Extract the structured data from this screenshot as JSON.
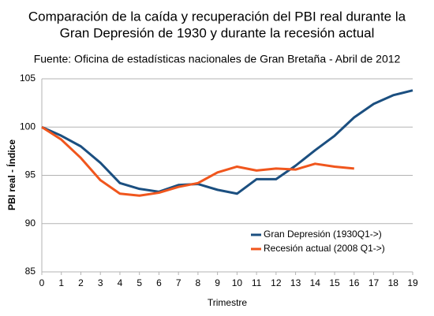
{
  "chart_data": {
    "type": "line",
    "title": [
      "Comparación de la caída y recuperación del PBI real durante la",
      "Gran Depresión de 1930 y durante la recesión actual"
    ],
    "subtitle": "Fuente: Oficina de estadísticas nacionales de Gran Bretaña - Abril de 2012",
    "x_label": "Trimestre",
    "y_label": "PBI real - Índice",
    "x": [
      0,
      1,
      2,
      3,
      4,
      5,
      6,
      7,
      8,
      9,
      10,
      11,
      12,
      13,
      14,
      15,
      16,
      17,
      18,
      19
    ],
    "series": [
      {
        "name": "Gran Depresión (1930Q1->)",
        "color": "#1b4f80",
        "values": [
          100,
          99.1,
          98.0,
          96.3,
          94.2,
          93.6,
          93.3,
          94.0,
          94.1,
          93.5,
          93.1,
          94.6,
          94.6,
          96.0,
          97.6,
          99.1,
          101.0,
          102.4,
          103.3,
          103.8
        ]
      },
      {
        "name": "Recesión actual (2008 Q1->)",
        "color": "#f0561d",
        "values": [
          100,
          98.7,
          96.8,
          94.5,
          93.1,
          92.9,
          93.2,
          93.8,
          94.2,
          95.3,
          95.9,
          95.5,
          95.7,
          95.6,
          96.2,
          95.9,
          95.7,
          null,
          null,
          null
        ]
      }
    ],
    "xlim": [
      0,
      19
    ],
    "xticks": [
      0,
      1,
      2,
      3,
      4,
      5,
      6,
      7,
      8,
      9,
      10,
      11,
      12,
      13,
      14,
      15,
      16,
      17,
      18,
      19
    ],
    "ylim": [
      85,
      105
    ],
    "yticks": [
      85,
      90,
      95,
      100,
      105
    ],
    "grid": true,
    "legend": "lower right"
  }
}
